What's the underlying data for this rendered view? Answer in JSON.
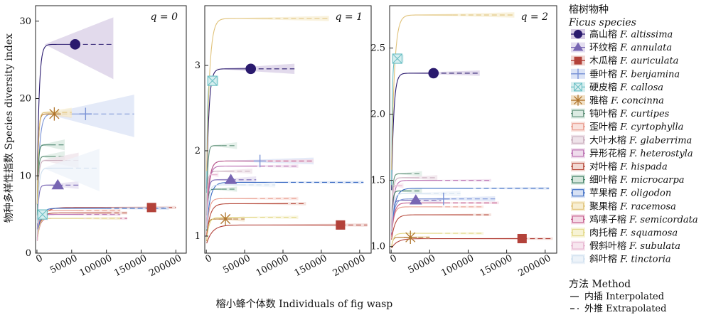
{
  "chart_data": {
    "type": "line",
    "ylabel": "物种多样性指数 Species diversity index",
    "xlabel": "榕小蜂个体数 Individuals of fig wasp",
    "legend_title_cn": "榕树物种",
    "legend_title_en": "Ficus species",
    "method_title": "方法 Method",
    "method_items": [
      {
        "symbol": "—",
        "label": "内插 Interpolated",
        "dash": ""
      },
      {
        "symbol": "-- ",
        "label": "外推 Extrapolated",
        "dash": "6,4"
      }
    ],
    "x_ticks": [
      "0",
      "50000",
      "100000",
      "150000",
      "200000"
    ],
    "x_tick_values": [
      0,
      50000,
      100000,
      150000,
      200000
    ],
    "xlim": [
      -2000,
      215000
    ],
    "species": [
      {
        "cn": "高山榕",
        "en": "F. altissima",
        "color": "#2a1a6e",
        "band": "#d8cde6",
        "marker": "circle"
      },
      {
        "cn": "环纹榕",
        "en": "F. annulata",
        "color": "#7866b3",
        "band": "#e4def0",
        "marker": "triangle"
      },
      {
        "cn": "木瓜榕",
        "en": "F. auriculata",
        "color": "#b3423a",
        "band": "#f0d6d2",
        "marker": "square"
      },
      {
        "cn": "垂叶榕",
        "en": "F. benjamina",
        "color": "#7a93d6",
        "band": "#dbe3f6",
        "marker": "plus"
      },
      {
        "cn": "硬皮榕",
        "en": "F. callosa",
        "color": "#6bbfc4",
        "band": "#d6eeef",
        "marker": "boxx"
      },
      {
        "cn": "雅榕",
        "en": "F. concinna",
        "color": "#b0752c",
        "band": "#f1e0c6",
        "marker": "asterisk"
      },
      {
        "cn": "钝叶榕",
        "en": "F. curtipes",
        "color": "#5f8f78",
        "band": "#dcebe3",
        "marker": "rect"
      },
      {
        "cn": "歪叶榕",
        "en": "F. cyrtophylla",
        "color": "#e89a8c",
        "band": "#f9e2dd",
        "marker": "rect"
      },
      {
        "cn": "大叶水榕",
        "en": "F. glaberrima",
        "color": "#c9aebd",
        "band": "#efe3ea",
        "marker": "rect"
      },
      {
        "cn": "异形花榕",
        "en": "F. heterostyla",
        "color": "#b86bb0",
        "band": "#efdcec",
        "marker": "rect"
      },
      {
        "cn": "对叶榕",
        "en": "F. hispada",
        "color": "#b64a3c",
        "band": "#f2d9d3",
        "marker": "rect"
      },
      {
        "cn": "细叶榕",
        "en": "F. microcarpa",
        "color": "#3e7d63",
        "band": "#d6e7dd",
        "marker": "rect"
      },
      {
        "cn": "苹果榕",
        "en": "F. oligodon",
        "color": "#3c6cc4",
        "band": "#d7e1f4",
        "marker": "rect"
      },
      {
        "cn": "聚果榕",
        "en": "F. racemosa",
        "color": "#e0c27a",
        "band": "#f7eed2",
        "marker": "rect"
      },
      {
        "cn": "鸡嗉子榕",
        "en": "F. semicordata",
        "color": "#c25a8a",
        "band": "#f4dbe6",
        "marker": "rect"
      },
      {
        "cn": "肉托榕",
        "en": "F. squamosa",
        "color": "#e3d98a",
        "band": "#f7f3d5",
        "marker": "rect"
      },
      {
        "cn": "假斜叶榕",
        "en": "F. subulata",
        "color": "#e6b3cf",
        "band": "#f7e6ef",
        "marker": "rect"
      },
      {
        "cn": "斜叶榕",
        "en": "F. tinctoria",
        "color": "#cfe0ef",
        "band": "#edf3f9",
        "marker": "rect"
      }
    ],
    "panels": [
      {
        "label": "q = 0",
        "ylim": [
          0,
          32
        ],
        "y_ticks": [
          "0",
          "10",
          "20",
          "30"
        ],
        "y_tick_values": [
          0,
          10,
          20,
          30
        ],
        "curves": [
          {
            "species": 0,
            "n": 55000,
            "value": 27,
            "maxx": 110000,
            "shape": 0.26,
            "lo": 22.5,
            "hi": 30.5
          },
          {
            "species": 1,
            "n": 30000,
            "value": 8.8,
            "maxx": 60000,
            "shape": 0.2,
            "lo": 8.3,
            "hi": 9.3
          },
          {
            "species": 2,
            "n": 165000,
            "value": 5.9,
            "maxx": 200000,
            "shape": 0.06,
            "lo": 5.7,
            "hi": 6.1
          },
          {
            "species": 3,
            "n": 70000,
            "value": 18,
            "maxx": 140000,
            "shape": 0.25,
            "lo": 15,
            "hi": 20.5
          },
          {
            "species": 4,
            "n": 8000,
            "value": 5,
            "maxx": 16000,
            "shape": 0.3,
            "lo": 4.6,
            "hi": 5.4
          },
          {
            "species": 5,
            "n": 25000,
            "value": 18,
            "maxx": 50000,
            "shape": 0.2,
            "lo": 17.5,
            "hi": 18.5
          },
          {
            "species": 6,
            "n": 20000,
            "value": 12.5,
            "maxx": 40000,
            "shape": 0.22,
            "lo": 11.8,
            "hi": 13.2
          },
          {
            "species": 7,
            "n": 60000,
            "value": 5.5,
            "maxx": 120000,
            "shape": 0.08,
            "lo": 5.3,
            "hi": 5.7
          },
          {
            "species": 8,
            "n": 30000,
            "value": 12,
            "maxx": 60000,
            "shape": 0.22,
            "lo": 11,
            "hi": 13
          },
          {
            "species": 9,
            "n": 60000,
            "value": 5,
            "maxx": 120000,
            "shape": 0.08,
            "lo": 4.8,
            "hi": 5.2
          },
          {
            "species": 10,
            "n": 100000,
            "value": 5.2,
            "maxx": 130000,
            "shape": 0.06,
            "lo": 5,
            "hi": 5.4
          },
          {
            "species": 11,
            "n": 20000,
            "value": 14,
            "maxx": 40000,
            "shape": 0.22,
            "lo": 13.3,
            "hi": 14.7
          },
          {
            "species": 12,
            "n": 100000,
            "value": 5.8,
            "maxx": 190000,
            "shape": 0.06,
            "lo": 5.6,
            "hi": 6
          },
          {
            "species": 13,
            "n": 25000,
            "value": 18.2,
            "maxx": 50000,
            "shape": 0.15,
            "lo": 17.6,
            "hi": 18.8
          },
          {
            "species": 14,
            "n": 70000,
            "value": 4.5,
            "maxx": 130000,
            "shape": 0.07,
            "lo": 4.3,
            "hi": 4.7
          },
          {
            "species": 15,
            "n": 60000,
            "value": 4.5,
            "maxx": 120000,
            "shape": 0.07,
            "lo": 4.3,
            "hi": 4.7
          },
          {
            "species": 16,
            "n": 8000,
            "value": 4.5,
            "maxx": 16000,
            "shape": 0.3,
            "lo": 4.2,
            "hi": 4.8
          },
          {
            "species": 17,
            "n": 45000,
            "value": 11,
            "maxx": 90000,
            "shape": 0.25,
            "lo": 8,
            "hi": 13.5
          }
        ]
      },
      {
        "label": "q = 1",
        "ylim": [
          0.8,
          3.7
        ],
        "y_ticks": [
          "1",
          "2",
          "3"
        ],
        "y_tick_values": [
          1,
          2,
          3
        ],
        "curves": [
          {
            "species": 0,
            "n": 58000,
            "value": 2.96,
            "maxx": 115000,
            "shape": 0.03,
            "lo": 2.9,
            "hi": 3.02
          },
          {
            "species": 1,
            "n": 32000,
            "value": 1.66,
            "maxx": 65000,
            "shape": 0.03,
            "lo": 1.62,
            "hi": 1.7
          },
          {
            "species": 2,
            "n": 175000,
            "value": 1.13,
            "maxx": 210000,
            "shape": 0.02,
            "lo": 1.11,
            "hi": 1.15
          },
          {
            "species": 3,
            "n": 70000,
            "value": 1.88,
            "maxx": 140000,
            "shape": 0.03,
            "lo": 1.84,
            "hi": 1.92
          },
          {
            "species": 4,
            "n": 8000,
            "value": 2.82,
            "maxx": 16000,
            "shape": 0.08,
            "lo": 2.76,
            "hi": 2.88
          },
          {
            "species": 5,
            "n": 25000,
            "value": 1.2,
            "maxx": 50000,
            "shape": 0.03,
            "lo": 1.17,
            "hi": 1.23
          },
          {
            "species": 6,
            "n": 20000,
            "value": 2.06,
            "maxx": 40000,
            "shape": 0.03,
            "lo": 2.02,
            "hi": 2.1
          },
          {
            "species": 7,
            "n": 60000,
            "value": 1.44,
            "maxx": 120000,
            "shape": 0.02,
            "lo": 1.42,
            "hi": 1.46
          },
          {
            "species": 8,
            "n": 30000,
            "value": 1.76,
            "maxx": 60000,
            "shape": 0.03,
            "lo": 1.73,
            "hi": 1.79
          },
          {
            "species": 9,
            "n": 60000,
            "value": 1.82,
            "maxx": 120000,
            "shape": 0.02,
            "lo": 1.8,
            "hi": 1.84
          },
          {
            "species": 10,
            "n": 100000,
            "value": 1.38,
            "maxx": 130000,
            "shape": 0.02,
            "lo": 1.36,
            "hi": 1.4
          },
          {
            "species": 11,
            "n": 20000,
            "value": 1.55,
            "maxx": 40000,
            "shape": 0.03,
            "lo": 1.52,
            "hi": 1.58
          },
          {
            "species": 12,
            "n": 100000,
            "value": 1.63,
            "maxx": 205000,
            "shape": 0.02,
            "lo": 1.61,
            "hi": 1.65
          },
          {
            "species": 13,
            "n": 80000,
            "value": 3.55,
            "maxx": 160000,
            "shape": 0.005,
            "lo": 3.52,
            "hi": 3.58
          },
          {
            "species": 14,
            "n": 70000,
            "value": 1.88,
            "maxx": 140000,
            "shape": 0.02,
            "lo": 1.86,
            "hi": 1.9
          },
          {
            "species": 15,
            "n": 60000,
            "value": 1.22,
            "maxx": 120000,
            "shape": 0.02,
            "lo": 1.2,
            "hi": 1.24
          },
          {
            "species": 16,
            "n": 8000,
            "value": 1.72,
            "maxx": 16000,
            "shape": 0.08,
            "lo": 1.69,
            "hi": 1.75
          },
          {
            "species": 17,
            "n": 45000,
            "value": 1.6,
            "maxx": 90000,
            "shape": 0.03,
            "lo": 1.57,
            "hi": 1.63
          }
        ]
      },
      {
        "label": "q = 2",
        "ylim": [
          0.95,
          2.82
        ],
        "y_ticks": [
          "1.0",
          "1.5",
          "2.0",
          "2.5"
        ],
        "y_tick_values": [
          1.0,
          1.5,
          2.0,
          2.5
        ],
        "curves": [
          {
            "species": 0,
            "n": 55000,
            "value": 2.31,
            "maxx": 115000,
            "shape": 0.02,
            "lo": 2.29,
            "hi": 2.33
          },
          {
            "species": 1,
            "n": 32000,
            "value": 1.35,
            "maxx": 65000,
            "shape": 0.02,
            "lo": 1.33,
            "hi": 1.37
          },
          {
            "species": 2,
            "n": 170000,
            "value": 1.06,
            "maxx": 210000,
            "shape": 0.02,
            "lo": 1.05,
            "hi": 1.07
          },
          {
            "species": 3,
            "n": 68000,
            "value": 1.36,
            "maxx": 135000,
            "shape": 0.02,
            "lo": 1.34,
            "hi": 1.38
          },
          {
            "species": 4,
            "n": 8000,
            "value": 2.42,
            "maxx": 16000,
            "shape": 0.06,
            "lo": 2.39,
            "hi": 2.45
          },
          {
            "species": 5,
            "n": 25000,
            "value": 1.07,
            "maxx": 50000,
            "shape": 0.02,
            "lo": 1.06,
            "hi": 1.08
          },
          {
            "species": 6,
            "n": 20000,
            "value": 1.55,
            "maxx": 40000,
            "shape": 0.02,
            "lo": 1.53,
            "hi": 1.57
          },
          {
            "species": 7,
            "n": 60000,
            "value": 1.3,
            "maxx": 120000,
            "shape": 0.02,
            "lo": 1.29,
            "hi": 1.31
          },
          {
            "species": 8,
            "n": 30000,
            "value": 1.52,
            "maxx": 60000,
            "shape": 0.02,
            "lo": 1.5,
            "hi": 1.54
          },
          {
            "species": 9,
            "n": 60000,
            "value": 1.5,
            "maxx": 130000,
            "shape": 0.02,
            "lo": 1.49,
            "hi": 1.51
          },
          {
            "species": 10,
            "n": 100000,
            "value": 1.24,
            "maxx": 130000,
            "shape": 0.02,
            "lo": 1.23,
            "hi": 1.25
          },
          {
            "species": 11,
            "n": 20000,
            "value": 1.42,
            "maxx": 40000,
            "shape": 0.02,
            "lo": 1.4,
            "hi": 1.44
          },
          {
            "species": 12,
            "n": 100000,
            "value": 1.44,
            "maxx": 205000,
            "shape": 0.02,
            "lo": 1.43,
            "hi": 1.45
          },
          {
            "species": 13,
            "n": 80000,
            "value": 2.75,
            "maxx": 160000,
            "shape": 0.005,
            "lo": 2.73,
            "hi": 2.77
          },
          {
            "species": 14,
            "n": 70000,
            "value": 1.33,
            "maxx": 140000,
            "shape": 0.02,
            "lo": 1.32,
            "hi": 1.34
          },
          {
            "species": 15,
            "n": 60000,
            "value": 1.1,
            "maxx": 120000,
            "shape": 0.02,
            "lo": 1.09,
            "hi": 1.11
          },
          {
            "species": 16,
            "n": 8000,
            "value": 1.46,
            "maxx": 16000,
            "shape": 0.06,
            "lo": 1.44,
            "hi": 1.48
          },
          {
            "species": 17,
            "n": 45000,
            "value": 1.4,
            "maxx": 90000,
            "shape": 0.02,
            "lo": 1.38,
            "hi": 1.42
          }
        ]
      }
    ]
  }
}
